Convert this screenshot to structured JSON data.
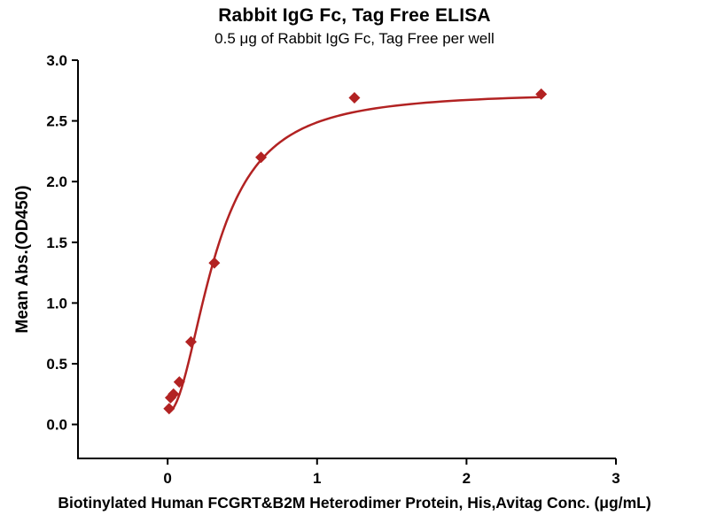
{
  "chart_data": {
    "type": "scatter",
    "title": "Rabbit IgG Fc, Tag Free ELISA",
    "subtitle": "0.5 μg of Rabbit IgG Fc, Tag Free per well",
    "xlabel": "Biotinylated Human FCGRT&B2M Heterodimer Protein, His,Avitag Conc. (μg/mL)",
    "ylabel": "Mean Abs.(OD450)",
    "x": [
      0.0098,
      0.0195,
      0.039,
      0.078,
      0.156,
      0.3125,
      0.625,
      1.25,
      2.5
    ],
    "y": [
      0.13,
      0.22,
      0.25,
      0.35,
      0.68,
      1.33,
      2.2,
      2.69,
      2.72
    ],
    "xlim": [
      -0.6,
      3.0
    ],
    "ylim": [
      -0.28,
      3.0
    ],
    "xticks": [
      0,
      1,
      2,
      3
    ],
    "xtick_labels": [
      "0",
      "1",
      "2",
      "3"
    ],
    "yticks": [
      0,
      0.5,
      1.0,
      1.5,
      2.0,
      2.5,
      3.0
    ],
    "ytick_labels": [
      "0.0",
      "0.5",
      "1.0",
      "1.5",
      "2.0",
      "2.5",
      "3.0"
    ],
    "marker": "diamond",
    "color": "#b22222",
    "axis_color": "#000000",
    "grid": false,
    "legend": "none",
    "fit": {
      "type": "4PL",
      "bottom": 0.1,
      "top": 2.74,
      "ec50": 0.325,
      "hill": 2.0
    }
  }
}
